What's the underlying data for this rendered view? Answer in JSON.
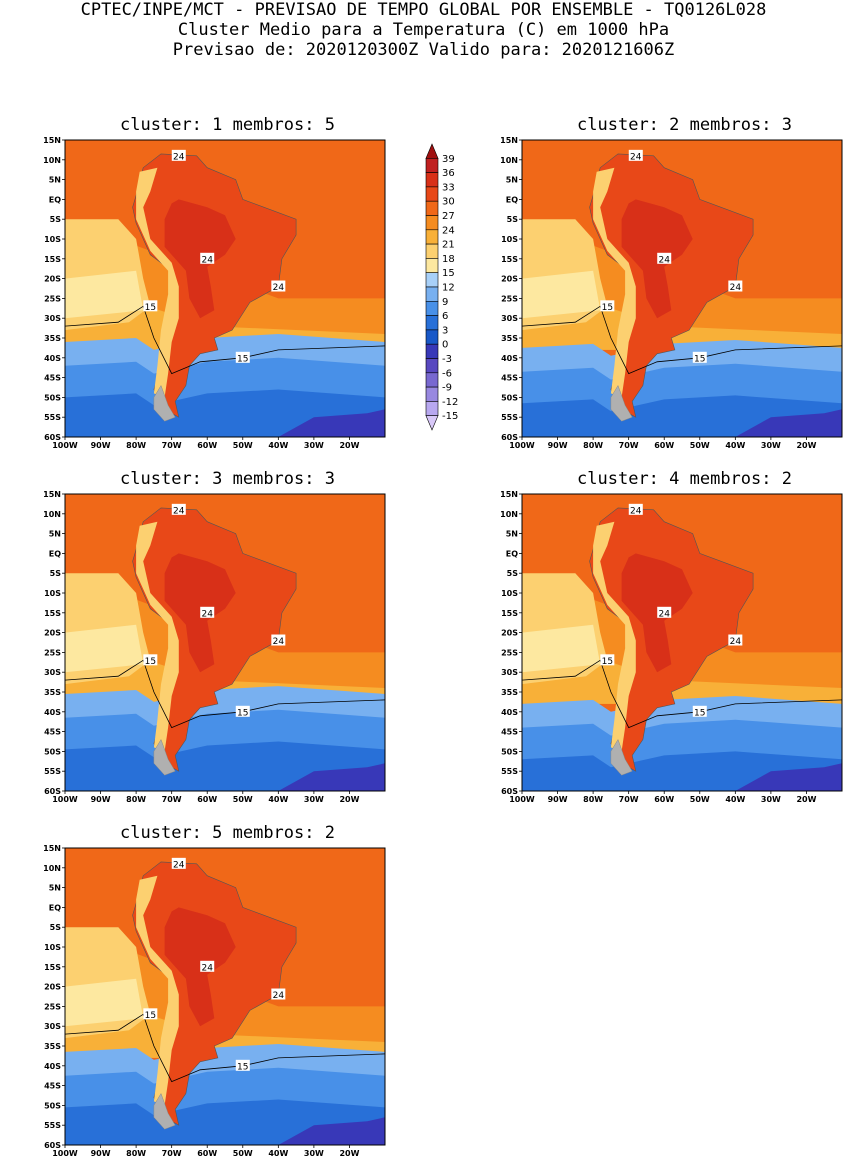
{
  "header": {
    "line1": "CPTEC/INPE/MCT - PREVISAO DE TEMPO GLOBAL POR ENSEMBLE - TQ0126L028",
    "line2": "Cluster Medio para a Temperatura (C) em 1000 hPa",
    "line3": "Previsao de: 2020120300Z   Valido para: 2020121606Z"
  },
  "panels": [
    {
      "title": "cluster: 1   membros: 5"
    },
    {
      "title": "cluster: 2   membros: 3"
    },
    {
      "title": "cluster: 3   membros: 3"
    },
    {
      "title": "cluster: 4   membros: 2"
    },
    {
      "title": "cluster: 5   membros: 2"
    }
  ],
  "lat_labels": [
    "15N",
    "10N",
    "5N",
    "EQ",
    "5S",
    "10S",
    "15S",
    "20S",
    "25S",
    "30S",
    "35S",
    "40S",
    "45S",
    "50S",
    "55S",
    "60S"
  ],
  "lon_labels": [
    "100W",
    "90W",
    "80W",
    "70W",
    "60W",
    "50W",
    "40W",
    "30W",
    "20W"
  ],
  "contour_labels": [
    "24",
    "15"
  ],
  "colorbar": {
    "levels": [
      "39",
      "36",
      "33",
      "30",
      "27",
      "24",
      "21",
      "18",
      "15",
      "12",
      "9",
      "6",
      "3",
      "0",
      "-3",
      "-6",
      "-9",
      "-12",
      "-15"
    ],
    "colors": [
      "#a01010",
      "#c02020",
      "#d83018",
      "#e84818",
      "#f06818",
      "#f58c20",
      "#f8b038",
      "#fcd070",
      "#fde8a0",
      "#a8d0f8",
      "#78b0f0",
      "#4890e8",
      "#2870d8",
      "#1858c8",
      "#3838b8",
      "#5848c0",
      "#7868d0",
      "#9888e0",
      "#b8a8f0",
      "#d8c8f8"
    ]
  },
  "colors": {
    "ocean_tropical": "#f06818",
    "land_hot": "#e84818",
    "warm": "#f58c20",
    "mild": "#f8b038",
    "cool_yellow": "#fcd070",
    "pale": "#fde8a0",
    "blue_light": "#78b0f0",
    "blue_mid": "#4890e8",
    "blue_dark": "#2870d8",
    "purple": "#3838b8"
  }
}
